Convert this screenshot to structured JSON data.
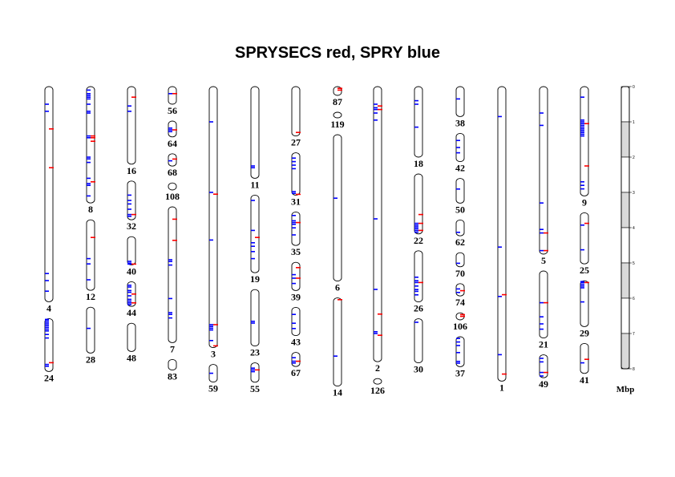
{
  "title": "SPRYSECS red, SPRY blue",
  "colors": {
    "sprysecs": "#ff0000",
    "spry": "#0000ff",
    "scale_shade": "#d9d9d9"
  },
  "scale": {
    "unit": "Mbp",
    "ticks": [
      {
        "value": 0.0,
        "label": "0"
      },
      {
        "value": 0.1,
        "label": "1"
      },
      {
        "value": 0.2,
        "label": "2"
      },
      {
        "value": 0.3,
        "label": "3"
      },
      {
        "value": 0.4,
        "label": "4"
      },
      {
        "value": 0.5,
        "label": "5"
      },
      {
        "value": 0.6,
        "label": "6"
      },
      {
        "value": 0.7,
        "label": "7"
      },
      {
        "value": 0.8,
        "label": "8"
      }
    ],
    "max": 0.8
  },
  "columns": [
    {
      "chromosomes": [
        {
          "label": "4",
          "len": 0.61,
          "blue": [
            0.05,
            0.07,
            0.53,
            0.55,
            0.58
          ],
          "red": [
            0.12,
            0.23
          ]
        },
        {
          "label": "24",
          "len": 0.15,
          "blue": [
            0.0,
            0.005,
            0.01,
            0.015,
            0.02,
            0.025,
            0.03,
            0.035,
            0.045,
            0.055,
            0.13,
            0.135
          ],
          "red": [
            0.125
          ]
        }
      ]
    },
    {
      "chromosomes": [
        {
          "label": "8",
          "len": 0.33,
          "blue": [
            0.01,
            0.02,
            0.025,
            0.03,
            0.035,
            0.05,
            0.07,
            0.075,
            0.14,
            0.145,
            0.2,
            0.205,
            0.215,
            0.26,
            0.275,
            0.28,
            0.31
          ],
          "red": [
            0.14,
            0.145,
            0.155,
            0.27
          ]
        },
        {
          "label": "12",
          "len": 0.2,
          "blue": [
            0.11,
            0.125,
            0.17
          ],
          "red": [
            0.05
          ]
        },
        {
          "label": "28",
          "len": 0.13,
          "blue": [
            0.06
          ],
          "red": []
        }
      ]
    },
    {
      "chromosomes": [
        {
          "label": "16",
          "len": 0.22,
          "blue": [
            0.055,
            0.07
          ],
          "red": [
            0.03
          ]
        },
        {
          "label": "32",
          "len": 0.11,
          "blue": [
            0.04,
            0.055,
            0.065,
            0.08,
            0.095,
            0.1
          ],
          "red": [
            0.095
          ]
        },
        {
          "label": "40",
          "len": 0.08,
          "blue": [
            0.07,
            0.075,
            0.08
          ],
          "red": [
            0.08
          ]
        },
        {
          "label": "44",
          "len": 0.07,
          "blue": [
            0.01,
            0.015,
            0.025,
            0.03,
            0.04,
            0.05,
            0.055,
            0.06,
            0.065
          ],
          "red": [
            0.035,
            0.06
          ]
        },
        {
          "label": "48",
          "len": 0.08,
          "blue": [],
          "red": []
        }
      ]
    },
    {
      "chromosomes": [
        {
          "label": "56",
          "len": 0.05,
          "blue": [
            0.02
          ],
          "red": [
            0.02
          ]
        },
        {
          "label": "64",
          "len": 0.045,
          "blue": [
            0.02,
            0.025,
            0.03
          ],
          "red": [
            0.025
          ]
        },
        {
          "label": "68",
          "len": 0.035,
          "blue": [
            0.02
          ],
          "red": [
            0.015
          ]
        },
        {
          "label": "108",
          "len": 0.02,
          "blue": [],
          "red": []
        },
        {
          "label": "7",
          "len": 0.385,
          "blue": [
            0.15,
            0.155,
            0.165,
            0.26,
            0.3,
            0.305,
            0.315
          ],
          "red": [
            0.035,
            0.095
          ]
        },
        {
          "label": "83",
          "len": 0.03,
          "blue": [],
          "red": []
        }
      ]
    },
    {
      "chromosomes": [
        {
          "label": "3",
          "len": 0.74,
          "blue": [
            0.1,
            0.3,
            0.435,
            0.675,
            0.68,
            0.685,
            0.69,
            0.72
          ],
          "red": [
            0.305,
            0.675,
            0.735
          ]
        },
        {
          "label": "59",
          "len": 0.05,
          "blue": [
            0.025
          ],
          "red": []
        }
      ]
    },
    {
      "chromosomes": [
        {
          "label": "11",
          "len": 0.26,
          "blue": [
            0.225,
            0.23
          ],
          "red": []
        },
        {
          "label": "19",
          "len": 0.22,
          "blue": [
            0.015,
            0.1,
            0.135,
            0.145,
            0.16,
            0.18
          ],
          "red": [
            0.12
          ]
        },
        {
          "label": "23",
          "len": 0.16,
          "blue": [
            0.09,
            0.095
          ],
          "red": []
        },
        {
          "label": "55",
          "len": 0.055,
          "blue": [
            0.015,
            0.02,
            0.025
          ],
          "red": [
            0.02
          ]
        }
      ]
    },
    {
      "chromosomes": [
        {
          "label": "27",
          "len": 0.14,
          "blue": [],
          "red": [
            0.13
          ]
        },
        {
          "label": "31",
          "len": 0.12,
          "blue": [
            0.015,
            0.025,
            0.035,
            0.045,
            0.11,
            0.115
          ],
          "red": [
            0.12
          ]
        },
        {
          "label": "35",
          "len": 0.095,
          "blue": [
            0.01,
            0.025,
            0.03,
            0.035,
            0.045,
            0.065
          ],
          "red": [
            0.03
          ]
        },
        {
          "label": "39",
          "len": 0.08,
          "blue": [
            0.035,
            0.045,
            0.06
          ],
          "red": [
            0.015,
            0.045
          ]
        },
        {
          "label": "43",
          "len": 0.08,
          "blue": [
            0.02,
            0.045,
            0.06
          ],
          "red": []
        },
        {
          "label": "67",
          "len": 0.04,
          "blue": [
            0.015,
            0.025,
            0.03
          ],
          "red": [
            0.025
          ]
        }
      ]
    },
    {
      "chromosomes": [
        {
          "label": "87",
          "len": 0.025,
          "blue": [],
          "red": [
            0.005,
            0.01
          ]
        },
        {
          "label": "119",
          "len": 0.015,
          "blue": [],
          "red": []
        },
        {
          "label": "6",
          "len": 0.415,
          "blue": [
            0.18
          ],
          "red": []
        },
        {
          "label": "14",
          "len": 0.25,
          "blue": [
            0.165
          ],
          "red": [
            0.005
          ]
        }
      ]
    },
    {
      "chromosomes": [
        {
          "label": "2",
          "len": 0.78,
          "blue": [
            0.05,
            0.06,
            0.065,
            0.075,
            0.095,
            0.375,
            0.575,
            0.695,
            0.7
          ],
          "red": [
            0.055,
            0.065,
            0.645,
            0.705
          ]
        },
        {
          "label": "126",
          "len": 0.01,
          "blue": [],
          "red": []
        }
      ]
    },
    {
      "chromosomes": [
        {
          "label": "18",
          "len": 0.2,
          "blue": [
            0.04,
            0.05,
            0.115
          ],
          "red": []
        },
        {
          "label": "22",
          "len": 0.17,
          "blue": [
            0.14,
            0.145,
            0.15,
            0.155,
            0.16,
            0.165
          ],
          "red": [
            0.115,
            0.14,
            0.16
          ]
        },
        {
          "label": "26",
          "len": 0.145,
          "blue": [
            0.075,
            0.085,
            0.09,
            0.1,
            0.11,
            0.115,
            0.125
          ],
          "red": [
            0.09
          ]
        },
        {
          "label": "30",
          "len": 0.125,
          "blue": [
            0.01
          ],
          "red": []
        }
      ]
    },
    {
      "chromosomes": [
        {
          "label": "38",
          "len": 0.085,
          "blue": [
            0.035
          ],
          "red": []
        },
        {
          "label": "42",
          "len": 0.08,
          "blue": [
            0.02,
            0.04,
            0.055
          ],
          "red": []
        },
        {
          "label": "50",
          "len": 0.07,
          "blue": [
            0.03
          ],
          "red": []
        },
        {
          "label": "62",
          "len": 0.045,
          "blue": [
            0.035
          ],
          "red": []
        },
        {
          "label": "70",
          "len": 0.04,
          "blue": [
            0.03
          ],
          "red": []
        },
        {
          "label": "74",
          "len": 0.035,
          "blue": [
            0.015,
            0.025
          ],
          "red": [
            0.02
          ]
        },
        {
          "label": "106",
          "len": 0.02,
          "blue": [],
          "red": [
            0.005,
            0.01
          ]
        },
        {
          "label": "37",
          "len": 0.085,
          "blue": [
            0.005,
            0.015,
            0.025,
            0.045,
            0.07,
            0.075
          ],
          "red": []
        }
      ]
    },
    {
      "chromosomes": [
        {
          "label": "1",
          "len": 0.835,
          "blue": [
            0.085,
            0.455,
            0.595,
            0.76
          ],
          "red": [
            0.59,
            0.815
          ]
        }
      ]
    },
    {
      "chromosomes": [
        {
          "label": "5",
          "len": 0.475,
          "blue": [
            0.075,
            0.11,
            0.33,
            0.405,
            0.415,
            0.465
          ],
          "red": [
            0.415,
            0.465
          ]
        },
        {
          "label": "21",
          "len": 0.19,
          "blue": [
            0.09,
            0.13,
            0.15,
            0.165
          ],
          "red": [
            0.09
          ]
        },
        {
          "label": "49",
          "len": 0.065,
          "blue": [
            0.01,
            0.02,
            0.05,
            0.06
          ],
          "red": [
            0.05
          ]
        }
      ]
    },
    {
      "chromosomes": [
        {
          "label": "9",
          "len": 0.31,
          "blue": [
            0.03,
            0.095,
            0.1,
            0.105,
            0.11,
            0.115,
            0.12,
            0.125,
            0.13,
            0.135,
            0.14,
            0.27,
            0.28,
            0.29
          ],
          "red": [
            0.105,
            0.225
          ]
        },
        {
          "label": "25",
          "len": 0.145,
          "blue": [
            0.035,
            0.105
          ],
          "red": [
            0.03
          ]
        },
        {
          "label": "29",
          "len": 0.13,
          "blue": [
            0.0,
            0.005,
            0.01,
            0.015,
            0.02,
            0.06
          ],
          "red": [
            0.005
          ]
        },
        {
          "label": "41",
          "len": 0.085,
          "blue": [
            0.055
          ],
          "red": [
            0.045
          ]
        }
      ]
    }
  ]
}
